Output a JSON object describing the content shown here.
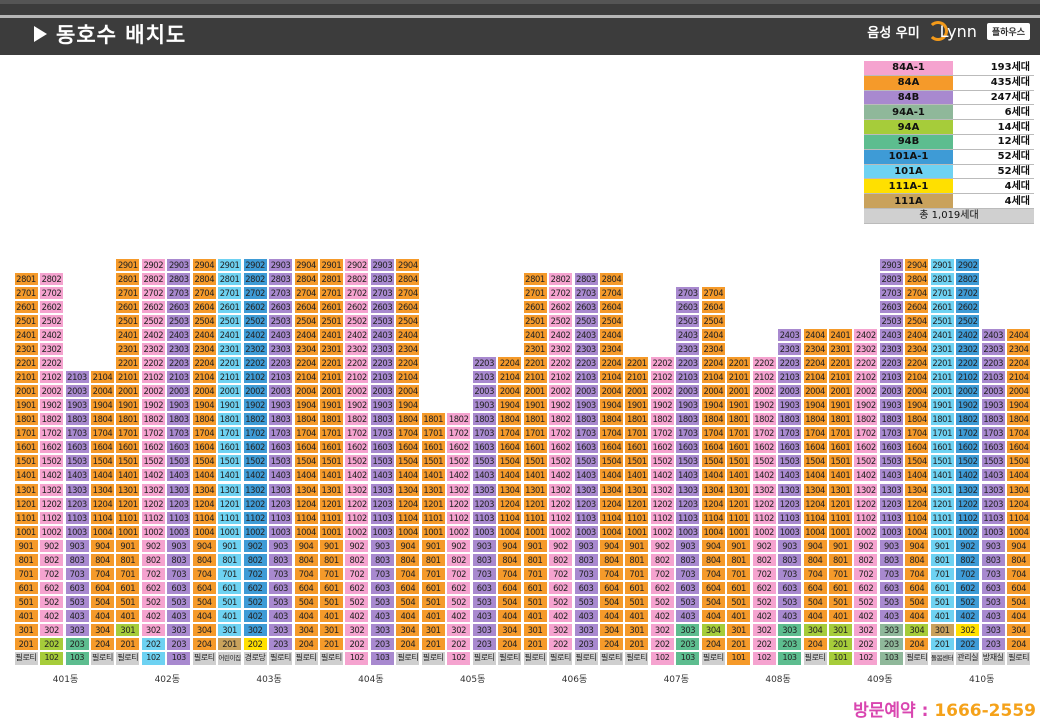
{
  "header": {
    "title": "동호수 배치도",
    "brand_a": "음성 우미",
    "brand_b": "Lynn",
    "brand_badge": "플하우스"
  },
  "colors": {
    "84A-1": "#f5a3cf",
    "84A": "#f59a2a",
    "84B": "#a889cf",
    "94A-1": "#8fb89a",
    "94A": "#a6cc3a",
    "94B": "#5dbd8f",
    "101A-1": "#3e9bd6",
    "101A": "#6ed2f2",
    "111A-1": "#ffe000",
    "111A": "#c9a25c",
    "util": "#cfcfcf"
  },
  "legend": [
    {
      "type": "84A-1",
      "count": "193세대"
    },
    {
      "type": "84A",
      "count": "435세대"
    },
    {
      "type": "84B",
      "count": "247세대"
    },
    {
      "type": "94A-1",
      "count": "6세대"
    },
    {
      "type": "94A",
      "count": "14세대"
    },
    {
      "type": "94B",
      "count": "12세대"
    },
    {
      "type": "101A-1",
      "count": "52세대"
    },
    {
      "type": "101A",
      "count": "52세대"
    },
    {
      "type": "111A-1",
      "count": "4세대"
    },
    {
      "type": "111A",
      "count": "4세대"
    }
  ],
  "legend_total": "총 1,019세대",
  "buildings": [
    {
      "name": "401동",
      "cols": [
        {
          "top": 28,
          "types": [
            "84A",
            "84A",
            "84A",
            "84A",
            "84A-1"
          ],
          "ground": "필로티"
        },
        {
          "top": 28,
          "types": [
            "84A-1",
            "84A-1",
            "94A",
            "84A-1"
          ],
          "ground": "102"
        },
        {
          "top": 21,
          "types": [
            "84B",
            "84B",
            "94B",
            "94B"
          ],
          "ground": "103"
        },
        {
          "top": 21,
          "types": [
            "84A",
            "84A",
            "84A",
            "84A"
          ],
          "ground": "필로티"
        }
      ]
    },
    {
      "name": "402동",
      "cols": [
        {
          "top": 29,
          "types": [
            "84A",
            "94A",
            "84A"
          ],
          "ground": "필로티"
        },
        {
          "top": 29,
          "types": [
            "84A-1",
            "84A-1",
            "101A"
          ],
          "ground": "102"
        },
        {
          "top": 29,
          "types": [
            "84B",
            "84B",
            "84B"
          ],
          "ground": "103"
        },
        {
          "top": 29,
          "types": [
            "84A",
            "84A",
            "84A"
          ],
          "ground": "필로티"
        }
      ]
    },
    {
      "name": "403동",
      "cols": [
        {
          "top": 29,
          "types": [
            "101A",
            "101A",
            "111A"
          ],
          "ground": "어린이집"
        },
        {
          "top": 29,
          "types": [
            "101A-1",
            "101A-1",
            "111A-1"
          ],
          "ground": "경로당"
        },
        {
          "top": 29,
          "types": [
            "84B",
            "84B",
            "84B"
          ],
          "ground": "필로티"
        },
        {
          "top": 29,
          "types": [
            "84A",
            "84A",
            "84A"
          ],
          "ground": "필로티"
        }
      ]
    },
    {
      "name": "404동",
      "cols": [
        {
          "top": 29,
          "types": [
            "84A",
            "84A",
            "84A"
          ],
          "ground": "필로티"
        },
        {
          "top": 29,
          "types": [
            "84A-1",
            "84A-1",
            "84A-1"
          ],
          "ground": "102"
        },
        {
          "top": 29,
          "types": [
            "84B",
            "84B",
            "84B"
          ],
          "ground": "103"
        },
        {
          "top": 29,
          "types": [
            "84A",
            "84A",
            "84A"
          ],
          "ground": "필로티"
        }
      ]
    },
    {
      "name": "405동",
      "cols": [
        {
          "top": 18,
          "types": [
            "84A",
            "84A",
            "84A"
          ],
          "ground": "필로티"
        },
        {
          "top": 18,
          "types": [
            "84A-1",
            "84A-1",
            "84A-1"
          ],
          "ground": "102"
        },
        {
          "top": 22,
          "types": [
            "84B",
            "84B",
            "84B"
          ],
          "ground": "필로티"
        },
        {
          "top": 22,
          "types": [
            "84A",
            "84A",
            "84A"
          ],
          "ground": "필로티"
        }
      ]
    },
    {
      "name": "406동",
      "cols": [
        {
          "top": 28,
          "types": [
            "84A",
            "84A",
            "84A"
          ],
          "ground": "필로티"
        },
        {
          "top": 28,
          "types": [
            "84A-1",
            "84A-1",
            "84A-1"
          ],
          "ground": "필로티"
        },
        {
          "top": 28,
          "types": [
            "84B",
            "84B",
            "84B"
          ],
          "ground": "필로티"
        },
        {
          "top": 28,
          "types": [
            "84A",
            "84A",
            "84A"
          ],
          "ground": "필로티"
        }
      ]
    },
    {
      "name": "407동",
      "cols": [
        {
          "top": 22,
          "types": [
            "84A",
            "84A",
            "84A"
          ],
          "ground": "필로티"
        },
        {
          "top": 22,
          "types": [
            "84A-1",
            "84A-1",
            "84A-1"
          ],
          "ground": "102"
        },
        {
          "top": 27,
          "types": [
            "84B",
            "94B",
            "94B"
          ],
          "ground": "103"
        },
        {
          "top": 27,
          "types": [
            "84A",
            "94A",
            "84A"
          ],
          "ground": "필로티"
        }
      ]
    },
    {
      "name": "408동",
      "cols": [
        {
          "top": 22,
          "types": [
            "84A",
            "84A",
            "84A"
          ],
          "ground": "101"
        },
        {
          "top": 22,
          "types": [
            "84A-1",
            "84A-1",
            "84A-1"
          ],
          "ground": "102"
        },
        {
          "top": 24,
          "types": [
            "84B",
            "94B",
            "94B"
          ],
          "ground": "103"
        },
        {
          "top": 24,
          "types": [
            "84A",
            "94A",
            "84A"
          ],
          "ground": "필로티"
        }
      ]
    },
    {
      "name": "409동",
      "cols": [
        {
          "top": 24,
          "types": [
            "84A",
            "94A",
            "94A"
          ],
          "ground": "101"
        },
        {
          "top": 24,
          "types": [
            "84A-1",
            "84A-1",
            "84A-1"
          ],
          "ground": "102"
        },
        {
          "top": 29,
          "types": [
            "84B",
            "94A-1",
            "94A-1"
          ],
          "ground": "103"
        },
        {
          "top": 29,
          "types": [
            "84A",
            "94A",
            "84A"
          ],
          "ground": "필로티"
        }
      ]
    },
    {
      "name": "410동",
      "cols": [
        {
          "top": 29,
          "types": [
            "101A",
            "111A",
            "101A"
          ],
          "ground": "돌봄센터"
        },
        {
          "top": 29,
          "types": [
            "101A-1",
            "111A-1",
            "101A-1"
          ],
          "ground": "관리실"
        },
        {
          "top": 24,
          "types": [
            "84B",
            "84B",
            "84B"
          ],
          "ground": "방재실"
        },
        {
          "top": 24,
          "types": [
            "84A",
            "84A",
            "84A"
          ],
          "ground": "필로티"
        }
      ]
    }
  ],
  "booking": {
    "label": "방문예약",
    "sep": " : ",
    "number": "1666-2559"
  }
}
